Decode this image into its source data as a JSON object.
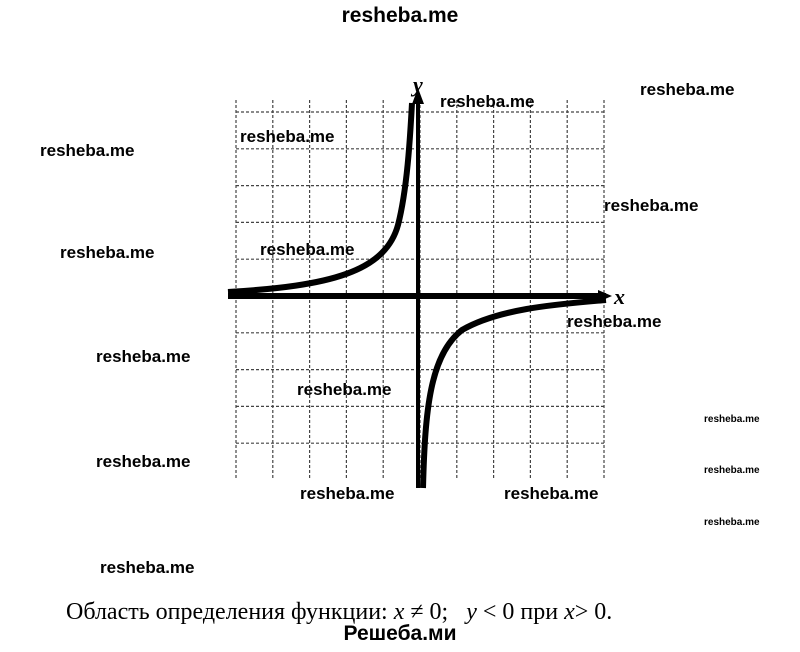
{
  "header": {
    "title": "resheba.me"
  },
  "graph": {
    "y_label": "y",
    "x_label": "x"
  },
  "watermarks": [
    "resheba.me",
    "resheba.me",
    "resheba.me",
    "resheba.me",
    "resheba.me",
    "resheba.me",
    "resheba.me",
    "resheba.me",
    "resheba.me",
    "resheba.me",
    "resheba.me",
    "resheba.me",
    "resheba.me",
    "resheba.me",
    "resheba.me",
    "resheba.me"
  ],
  "caption": {
    "parts": [
      "Область определения функции: ",
      "x",
      " ≠ 0;   ",
      "y",
      " < 0 при ",
      "x",
      "> 0."
    ]
  },
  "footer": {
    "title": "Решеба.ми"
  }
}
